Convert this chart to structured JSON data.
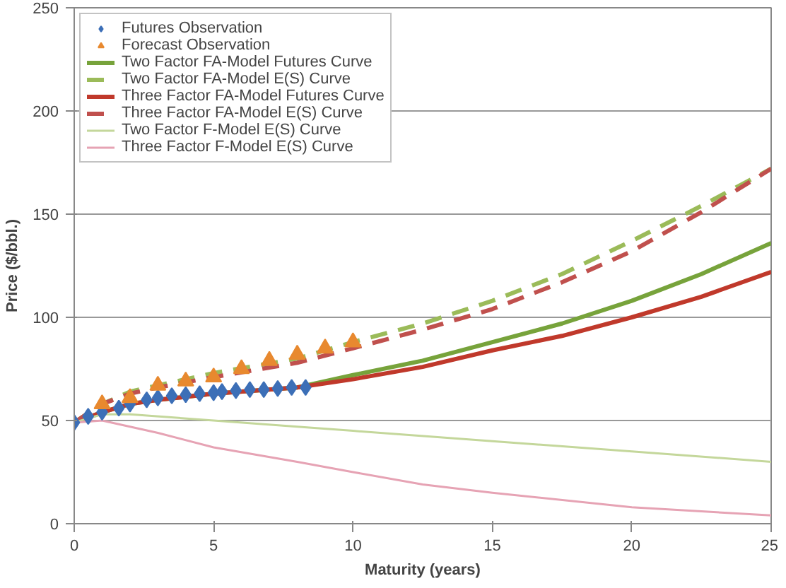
{
  "chart_data": {
    "type": "line",
    "xlabel": "Maturity (years)",
    "ylabel": "Price ($/bbl.)",
    "xlim": [
      0,
      25
    ],
    "xticks": [
      0,
      5,
      10,
      15,
      20,
      25
    ],
    "ylim": [
      0,
      250
    ],
    "yticks": [
      0,
      50,
      100,
      150,
      200,
      250
    ],
    "grid": "y",
    "legend": "top left",
    "series": [
      {
        "name": "Futures Observation",
        "type": "scatter",
        "marker": "diamond",
        "color": "#3c6fb7",
        "x": [
          0,
          0.5,
          1,
          1.6,
          2,
          2.6,
          3,
          3.5,
          4,
          4.5,
          5,
          5.3,
          5.8,
          6.3,
          6.8,
          7.3,
          7.8,
          8.3
        ],
        "values": [
          49,
          52,
          54,
          56,
          58,
          60,
          61,
          62,
          62.5,
          63,
          63.5,
          64,
          64.5,
          65,
          65,
          65.5,
          66,
          66
        ]
      },
      {
        "name": "Forecast Observation",
        "type": "scatter",
        "marker": "triangle",
        "color": "#e8892f",
        "x": [
          1,
          2,
          3,
          4,
          5,
          6,
          7,
          8,
          9,
          10
        ],
        "values": [
          58,
          61,
          67,
          69,
          71,
          75,
          79,
          82,
          85,
          88
        ]
      },
      {
        "name": "Two Factor FA-Model Futures Curve",
        "line_style": "solid",
        "color": "#77a33b",
        "x": [
          0,
          1,
          2,
          3,
          5,
          8,
          10,
          12.5,
          15,
          17.5,
          20,
          22.5,
          25
        ],
        "values": [
          49,
          54,
          58,
          60,
          63,
          66,
          72,
          79,
          88,
          97,
          108,
          121,
          136
        ]
      },
      {
        "name": "Two Factor FA-Model E(S) Curve",
        "line_style": "dashed",
        "color": "#9bbb59",
        "x": [
          0,
          1,
          2,
          3,
          5,
          8,
          10,
          12.5,
          15,
          17.5,
          20,
          22.5,
          25
        ],
        "values": [
          49,
          58,
          64,
          67,
          73,
          80,
          88,
          97,
          108,
          121,
          137,
          154,
          172
        ]
      },
      {
        "name": "Three Factor FA-Model Futures Curve",
        "line_style": "solid",
        "color": "#c0392b",
        "x": [
          0,
          1,
          2,
          3,
          5,
          8,
          10,
          12.5,
          15,
          17.5,
          20,
          22.5,
          25
        ],
        "values": [
          49,
          54,
          58,
          60,
          63,
          66,
          70,
          76,
          84,
          91,
          100,
          110,
          122
        ]
      },
      {
        "name": "Three Factor FA-Model E(S) Curve",
        "line_style": "dashed",
        "color": "#c0504d",
        "x": [
          0,
          1,
          2,
          3,
          5,
          8,
          10,
          12.5,
          15,
          17.5,
          20,
          22.5,
          25
        ],
        "values": [
          49,
          58,
          63,
          66,
          71,
          78,
          85,
          94,
          104,
          117,
          132,
          151,
          172
        ]
      },
      {
        "name": "Two Factor F-Model E(S) Curve",
        "line_style": "solid",
        "color": "#c4d79b",
        "x": [
          0,
          1,
          2,
          5,
          8,
          10,
          15,
          20,
          25
        ],
        "values": [
          49,
          53,
          53,
          50,
          47,
          45,
          40,
          35,
          30
        ]
      },
      {
        "name": "Three Factor F-Model E(S) Curve",
        "line_style": "solid",
        "color": "#e6a3b4",
        "x": [
          0,
          1,
          3,
          5,
          8,
          10,
          12.5,
          15,
          20,
          25
        ],
        "values": [
          49,
          50,
          44,
          37,
          30,
          25,
          19,
          15,
          8,
          4
        ]
      }
    ]
  }
}
